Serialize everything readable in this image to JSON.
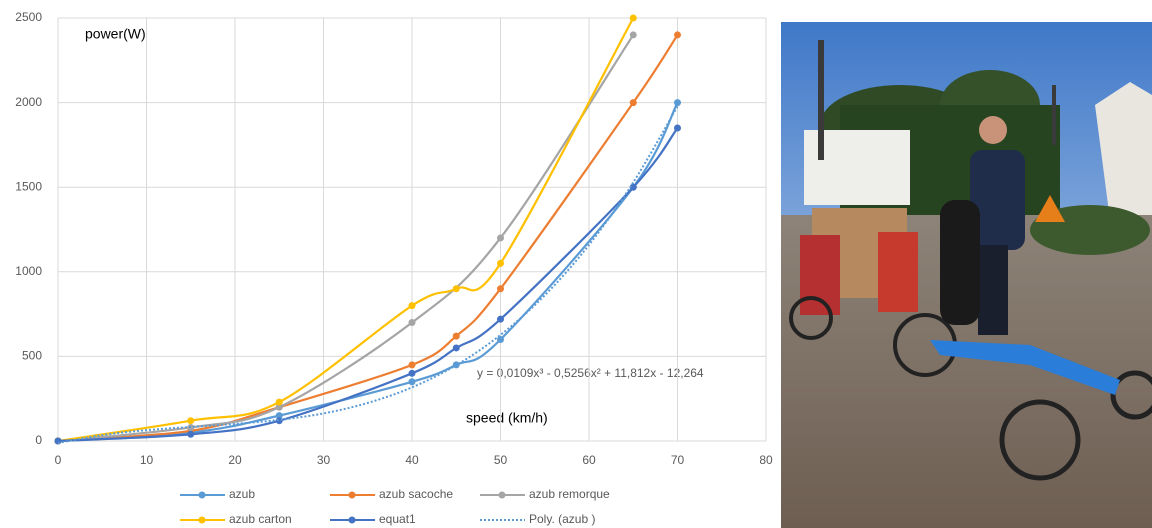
{
  "chart_data": {
    "type": "line",
    "y_label": "power(W)",
    "x_label": "speed (km/h)",
    "annotation": "y = 0,0109x³ - 0,5256x² + 11,812x - 12,264",
    "xlim": [
      0,
      80
    ],
    "xticks": [
      0,
      10,
      20,
      30,
      40,
      50,
      60,
      70,
      80
    ],
    "ylim": [
      0,
      2500
    ],
    "yticks": [
      0,
      500,
      1000,
      1500,
      2000,
      2500
    ],
    "grid": true,
    "series": [
      {
        "name": "azub",
        "color": "#5b9bd5",
        "marker": true,
        "x": [
          0,
          15,
          25,
          40,
          45,
          50,
          65,
          70
        ],
        "values": [
          0,
          50,
          150,
          350,
          450,
          600,
          1500,
          2000
        ]
      },
      {
        "name": "azub sacoche",
        "color": "#ed7d31",
        "marker": true,
        "x": [
          0,
          15,
          25,
          40,
          45,
          50,
          65,
          70
        ],
        "values": [
          0,
          60,
          200,
          450,
          620,
          900,
          2000,
          2400
        ]
      },
      {
        "name": "azub remorque",
        "color": "#a5a5a5",
        "marker": true,
        "x": [
          0,
          15,
          25,
          40,
          50,
          65
        ],
        "values": [
          0,
          80,
          200,
          700,
          1200,
          2400
        ]
      },
      {
        "name": "azub carton",
        "color": "#ffc000",
        "marker": true,
        "x": [
          0,
          15,
          25,
          40,
          45,
          50,
          65
        ],
        "values": [
          0,
          120,
          230,
          800,
          900,
          1050,
          2500
        ]
      },
      {
        "name": "equat1",
        "color": "#4472c4",
        "marker": true,
        "x": [
          0,
          15,
          25,
          40,
          45,
          50,
          65,
          70
        ],
        "values": [
          0,
          40,
          120,
          400,
          550,
          720,
          1500,
          1850
        ]
      },
      {
        "name": "Poly. (azub )",
        "color": "#5b9bd5",
        "marker": false,
        "dashed": true,
        "x": [
          0,
          5,
          10,
          15,
          20,
          25,
          30,
          35,
          40,
          45,
          50,
          55,
          60,
          65,
          70
        ],
        "values": [
          -12,
          35,
          64,
          83,
          101,
          125,
          163,
          225,
          317,
          448,
          627,
          861,
          1159,
          1528,
          1978
        ]
      }
    ]
  }
}
